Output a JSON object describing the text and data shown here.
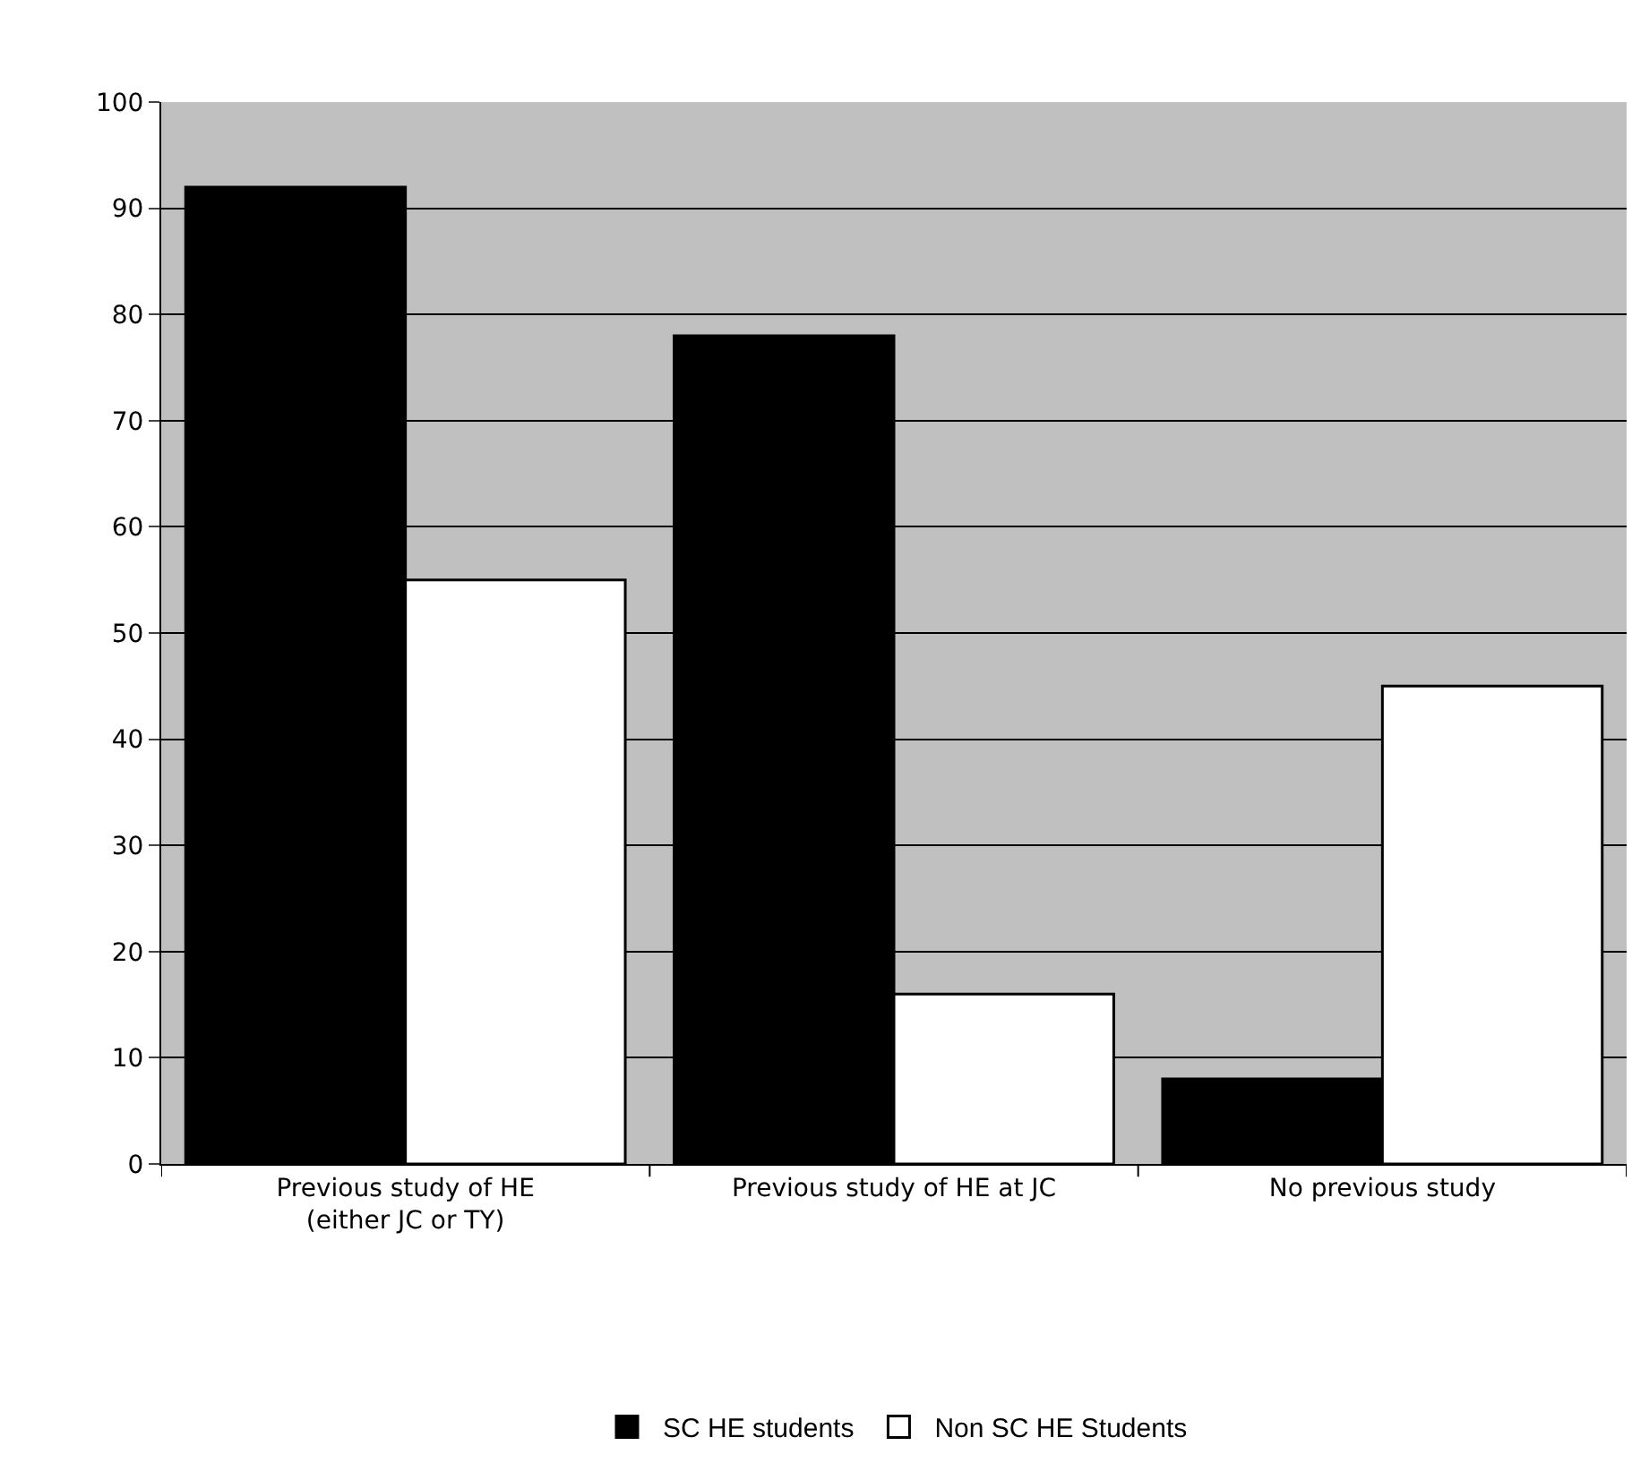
{
  "chart_data": {
    "type": "bar",
    "categories": [
      "Previous study of HE\n(either JC or TY)",
      "Previous study of HE at JC",
      "No previous study"
    ],
    "series": [
      {
        "name": "SC HE students",
        "color": "#000000",
        "values": [
          92,
          78,
          8
        ]
      },
      {
        "name": "Non SC HE Students",
        "color": "#ffffff",
        "values": [
          55,
          16,
          45
        ]
      }
    ],
    "ylim": [
      0,
      100
    ],
    "yticks": [
      0,
      10,
      20,
      30,
      40,
      50,
      60,
      70,
      80,
      90,
      100
    ],
    "grid": "y",
    "legend": "bottom"
  }
}
